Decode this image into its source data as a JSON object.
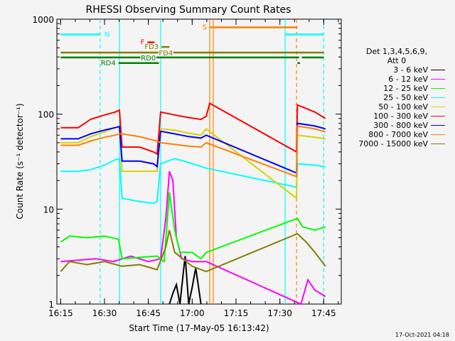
{
  "chart_data": {
    "type": "line",
    "title": "RHESSI Observing Summary Count Rates",
    "xlabel": "Start Time (17-May-05 16:13:42)",
    "ylabel": "Count Rate (s⁻¹ detector⁻¹)",
    "yscale": "log",
    "ylim": [
      1,
      1000
    ],
    "xlim": [
      16.2283,
      17.85
    ],
    "x_ticks": [
      {
        "label": "16:15",
        "value": 16.25
      },
      {
        "label": "16:30",
        "value": 16.5
      },
      {
        "label": "16:45",
        "value": 16.75
      },
      {
        "label": "17:00",
        "value": 17.0
      },
      {
        "label": "17:15",
        "value": 17.25
      },
      {
        "label": "17:30",
        "value": 17.5
      },
      {
        "label": "17:45",
        "value": 17.75
      }
    ],
    "y_ticks": [
      {
        "label": "1",
        "value": 1
      },
      {
        "label": "10",
        "value": 10
      },
      {
        "label": "100",
        "value": 100
      },
      {
        "label": "1000",
        "value": 1000
      }
    ],
    "legend": {
      "header": [
        "Det 1,3,4,5,6,9,",
        "Att 0"
      ],
      "placement": "right"
    },
    "series": [
      {
        "name": "3 - 6 keV",
        "color": "#000000",
        "points": [
          [
            16.87,
            1
          ],
          [
            16.89,
            1.3
          ],
          [
            16.91,
            1.6
          ],
          [
            16.93,
            1
          ],
          [
            16.95,
            2.2
          ],
          [
            16.96,
            3.2
          ],
          [
            16.98,
            1
          ],
          [
            17.0,
            1.5
          ],
          [
            17.02,
            2.4
          ],
          [
            17.05,
            1
          ]
        ]
      },
      {
        "name": "6 - 12 keV",
        "color": "#ff00ff",
        "points": [
          [
            16.25,
            2.8
          ],
          [
            16.35,
            2.9
          ],
          [
            16.45,
            3.0
          ],
          [
            16.55,
            2.8
          ],
          [
            16.65,
            3.2
          ],
          [
            16.75,
            2.8
          ],
          [
            16.82,
            3.0
          ],
          [
            16.85,
            8
          ],
          [
            16.87,
            25
          ],
          [
            16.89,
            20
          ],
          [
            16.91,
            5
          ],
          [
            16.94,
            3
          ],
          [
            17.0,
            2.8
          ],
          [
            17.08,
            2.8
          ],
          [
            17.62,
            1
          ],
          [
            17.66,
            1.8
          ],
          [
            17.7,
            1.4
          ],
          [
            17.76,
            1.2
          ]
        ]
      },
      {
        "name": "12 - 25 keV",
        "color": "#00ff00",
        "points": [
          [
            16.25,
            4.5
          ],
          [
            16.3,
            5.2
          ],
          [
            16.4,
            5.0
          ],
          [
            16.5,
            5.2
          ],
          [
            16.58,
            4.8
          ],
          [
            16.6,
            3.0
          ],
          [
            16.7,
            3.1
          ],
          [
            16.8,
            3.2
          ],
          [
            16.84,
            2.8
          ],
          [
            16.87,
            15
          ],
          [
            16.9,
            6
          ],
          [
            16.93,
            3.5
          ],
          [
            17.0,
            3.5
          ],
          [
            17.05,
            3.0
          ],
          [
            17.08,
            3.5
          ],
          [
            17.6,
            8
          ],
          [
            17.63,
            6.5
          ],
          [
            17.7,
            6.0
          ],
          [
            17.76,
            6.5
          ]
        ]
      },
      {
        "name": "25 - 50 keV",
        "color": "#00ffff",
        "points": [
          [
            16.25,
            25
          ],
          [
            16.35,
            25
          ],
          [
            16.42,
            26
          ],
          [
            16.5,
            29
          ],
          [
            16.56,
            33
          ],
          [
            16.585,
            34
          ],
          [
            16.6,
            13
          ],
          [
            16.7,
            12
          ],
          [
            16.78,
            11.5
          ],
          [
            16.8,
            12
          ],
          [
            16.82,
            30
          ],
          [
            16.9,
            34
          ],
          [
            16.98,
            31
          ],
          [
            17.08,
            27
          ],
          [
            17.595,
            17
          ],
          [
            17.6,
            30
          ],
          [
            17.7,
            29
          ],
          [
            17.76,
            28
          ]
        ]
      },
      {
        "name": "50 - 100 keV",
        "color": "#d4d400",
        "points": [
          [
            16.25,
            50
          ],
          [
            16.35,
            50
          ],
          [
            16.42,
            58
          ],
          [
            16.5,
            65
          ],
          [
            16.56,
            72
          ],
          [
            16.585,
            74
          ],
          [
            16.6,
            25
          ],
          [
            16.7,
            25
          ],
          [
            16.78,
            25
          ],
          [
            16.8,
            25
          ],
          [
            16.82,
            70
          ],
          [
            16.9,
            68
          ],
          [
            16.98,
            63
          ],
          [
            17.05,
            60
          ],
          [
            17.08,
            70
          ],
          [
            17.595,
            13
          ],
          [
            17.6,
            60
          ],
          [
            17.7,
            57
          ],
          [
            17.76,
            55
          ]
        ]
      },
      {
        "name": "100 - 300 keV",
        "color": "#ff0000",
        "points": [
          [
            16.25,
            72
          ],
          [
            16.35,
            72
          ],
          [
            16.42,
            88
          ],
          [
            16.5,
            98
          ],
          [
            16.56,
            105
          ],
          [
            16.585,
            110
          ],
          [
            16.6,
            45
          ],
          [
            16.7,
            45
          ],
          [
            16.78,
            40
          ],
          [
            16.8,
            38
          ],
          [
            16.82,
            105
          ],
          [
            16.9,
            98
          ],
          [
            16.98,
            92
          ],
          [
            17.05,
            88
          ],
          [
            17.08,
            95
          ],
          [
            17.1,
            130
          ],
          [
            17.595,
            40
          ],
          [
            17.6,
            125
          ],
          [
            17.7,
            105
          ],
          [
            17.76,
            90
          ]
        ]
      },
      {
        "name": "300 - 800 keV",
        "color": "#0000ff",
        "points": [
          [
            16.25,
            55
          ],
          [
            16.35,
            55
          ],
          [
            16.42,
            62
          ],
          [
            16.5,
            68
          ],
          [
            16.56,
            72
          ],
          [
            16.585,
            74
          ],
          [
            16.6,
            32
          ],
          [
            16.7,
            32
          ],
          [
            16.78,
            30
          ],
          [
            16.8,
            28
          ],
          [
            16.82,
            66
          ],
          [
            16.9,
            62
          ],
          [
            16.98,
            58
          ],
          [
            17.05,
            56
          ],
          [
            17.08,
            60
          ],
          [
            17.595,
            24
          ],
          [
            17.6,
            80
          ],
          [
            17.7,
            75
          ],
          [
            17.76,
            70
          ]
        ]
      },
      {
        "name": "800 - 7000 keV",
        "color": "#ff8000",
        "points": [
          [
            16.25,
            47
          ],
          [
            16.35,
            47
          ],
          [
            16.42,
            52
          ],
          [
            16.5,
            57
          ],
          [
            16.56,
            60
          ],
          [
            16.585,
            62
          ],
          [
            16.6,
            62
          ],
          [
            16.7,
            58
          ],
          [
            16.8,
            52
          ],
          [
            16.82,
            50
          ],
          [
            16.9,
            48
          ],
          [
            16.98,
            46
          ],
          [
            17.05,
            45
          ],
          [
            17.08,
            50
          ],
          [
            17.595,
            22
          ],
          [
            17.6,
            75
          ],
          [
            17.7,
            70
          ],
          [
            17.76,
            65
          ]
        ]
      },
      {
        "name": "7000 - 15000 keV",
        "color": "#808000",
        "points": [
          [
            16.25,
            2.2
          ],
          [
            16.3,
            2.8
          ],
          [
            16.4,
            2.6
          ],
          [
            16.5,
            2.8
          ],
          [
            16.6,
            2.5
          ],
          [
            16.7,
            2.6
          ],
          [
            16.8,
            2.3
          ],
          [
            16.85,
            4
          ],
          [
            16.87,
            6
          ],
          [
            16.9,
            3.5
          ],
          [
            17.0,
            2.5
          ],
          [
            17.08,
            2.2
          ],
          [
            17.6,
            5.5
          ],
          [
            17.65,
            4.5
          ],
          [
            17.7,
            3.5
          ],
          [
            17.76,
            2.5
          ]
        ]
      }
    ],
    "state_bars": [
      {
        "label": "N",
        "color": "#00ffff",
        "label_side": "right",
        "level": 690,
        "segments": [
          [
            16.25,
            16.475
          ],
          [
            17.53,
            17.75
          ]
        ]
      },
      {
        "label": "S",
        "color": "#ff8000",
        "label_side": "left",
        "level": 820,
        "segments": [
          [
            17.1,
            17.6
          ]
        ]
      },
      {
        "label": "F",
        "color": "#ff0000",
        "label_side": "left",
        "level": 570,
        "segments": [
          [
            16.745,
            16.785
          ]
        ]
      },
      {
        "label": "FD3",
        "color": "#808000",
        "label_side": "left",
        "level": 510,
        "segments": [
          [
            16.825,
            16.87
          ]
        ]
      },
      {
        "label": "FD4",
        "color": "#808000",
        "label_side": "inline",
        "level": 445,
        "segments": [
          [
            16.25,
            17.75
          ]
        ]
      },
      {
        "label": "RD0",
        "color": "#008000",
        "label_side": "inline",
        "level": 395,
        "segments": [
          [
            16.25,
            17.61
          ],
          [
            17.625,
            17.75
          ]
        ]
      },
      {
        "label": "RD4",
        "color": "#008000",
        "label_side": "left",
        "level": 345,
        "segments": [
          [
            16.58,
            16.81
          ],
          [
            17.6,
            17.615
          ]
        ]
      }
    ],
    "markers": [
      {
        "x": 16.475,
        "color": "#00ffff",
        "style": "dashed"
      },
      {
        "x": 16.585,
        "color": "#00ffff",
        "style": "solid"
      },
      {
        "x": 16.82,
        "color": "#00ffff",
        "style": "solid"
      },
      {
        "x": 17.1,
        "color": "#ff8000",
        "style": "solid"
      },
      {
        "x": 17.12,
        "color": "#ff8000",
        "style": "solid"
      },
      {
        "x": 17.53,
        "color": "#00ffff",
        "style": "solid"
      },
      {
        "x": 17.595,
        "color": "#ff8000",
        "style": "dashed"
      },
      {
        "x": 17.75,
        "color": "#00ffff",
        "style": "dashed"
      }
    ]
  },
  "footer": {
    "timestamp": "17-Oct-2021 04:18"
  }
}
